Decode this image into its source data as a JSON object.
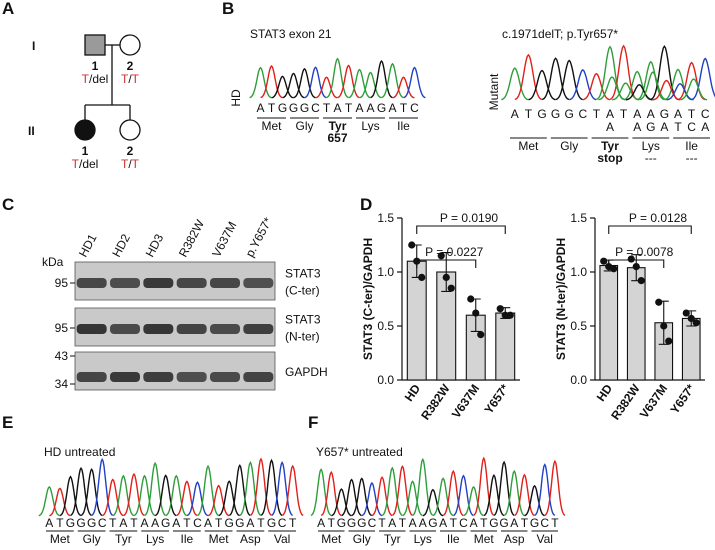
{
  "figure": {
    "A": {
      "label": "A",
      "generations": [
        "I",
        "II"
      ],
      "individuals": [
        {
          "number": "1",
          "genotype": [
            {
              "text": "T",
              "color": "#d0312d"
            },
            {
              "text": "/del",
              "color": "#111111"
            }
          ]
        },
        {
          "number": "2",
          "genotype": [
            {
              "text": "T",
              "color": "#d0312d"
            },
            {
              "text": "/",
              "color": "#111111"
            },
            {
              "text": "T",
              "color": "#d0312d"
            }
          ]
        },
        {
          "number": "1",
          "genotype": [
            {
              "text": "T",
              "color": "#d0312d"
            },
            {
              "text": "/del",
              "color": "#111111"
            }
          ]
        },
        {
          "number": "2",
          "genotype": [
            {
              "text": "T",
              "color": "#d0312d"
            },
            {
              "text": "/",
              "color": "#111111"
            },
            {
              "text": "T",
              "color": "#d0312d"
            }
          ]
        }
      ]
    },
    "B": {
      "label": "B",
      "hd": {
        "title": "STAT3 exon 21",
        "side_label": "HD",
        "bases": [
          "A",
          "T",
          "G",
          "G",
          "G",
          "C",
          "T",
          "A",
          "T",
          "A",
          "A",
          "G",
          "A",
          "T",
          "C"
        ],
        "amino_acids": [
          {
            "name": "Met"
          },
          {
            "name": "Gly"
          },
          {
            "name": "Tyr",
            "note": "657"
          },
          {
            "name": "Lys"
          },
          {
            "name": "Ile"
          }
        ]
      },
      "mutant": {
        "title": "c.1971delT; p.Tyr657*",
        "side_label": "Mutant",
        "bases": [
          "A",
          "T",
          "G",
          "G",
          "G",
          "C",
          "T",
          "A",
          "T",
          "A",
          "A",
          "G",
          "A",
          "T",
          "C"
        ],
        "second_bases": [
          "A",
          "A",
          "G",
          "A",
          "T",
          "C",
          "A"
        ],
        "amino_acids": [
          {
            "name": "Met"
          },
          {
            "name": "Gly"
          },
          {
            "name": "Tyr",
            "note": "stop"
          },
          {
            "name": "Lys",
            "note": "---"
          },
          {
            "name": "Ile",
            "note": "---"
          }
        ]
      }
    },
    "C": {
      "label": "C",
      "kda_label": "kDa",
      "lanes": [
        "HD1",
        "HD2",
        "HD3",
        "R382W",
        "V637M",
        "p.Y657*"
      ],
      "strips": [
        {
          "markers": [
            95
          ],
          "labels": [
            "STAT3",
            "(C-ter)"
          ]
        },
        {
          "markers": [
            95
          ],
          "labels": [
            "STAT3",
            "(N-ter)"
          ]
        },
        {
          "markers": [
            43,
            34
          ],
          "labels": [
            "GAPDH"
          ]
        }
      ]
    },
    "D": {
      "label": "D"
    },
    "E": {
      "label": "E",
      "title": "HD untreated",
      "bases": [
        "A",
        "T",
        "G",
        "G",
        "G",
        "C",
        "T",
        "A",
        "T",
        "A",
        "A",
        "G",
        "A",
        "T",
        "C",
        "A",
        "T",
        "G",
        "G",
        "A",
        "T",
        "G",
        "C",
        "T"
      ],
      "amino_acids": [
        "Met",
        "Gly",
        "Tyr",
        "Lys",
        "Ile",
        "Met",
        "Asp",
        "Val"
      ]
    },
    "F": {
      "label": "F",
      "title": "Y657* untreated",
      "bases": [
        "A",
        "T",
        "G",
        "G",
        "G",
        "C",
        "T",
        "A",
        "T",
        "A",
        "A",
        "G",
        "A",
        "T",
        "C",
        "A",
        "T",
        "G",
        "G",
        "A",
        "T",
        "G",
        "C",
        "T"
      ],
      "amino_acids": [
        "Met",
        "Gly",
        "Tyr",
        "Lys",
        "Ile",
        "Met",
        "Asp",
        "Val"
      ]
    }
  },
  "chart_data": [
    {
      "type": "bar",
      "y_label": "STAT3 (C-ter)/GAPDH",
      "categories": [
        "HD",
        "R382W",
        "V637M",
        "Y657*"
      ],
      "values": [
        1.1,
        1.0,
        0.6,
        0.62
      ],
      "errors": [
        0.15,
        0.18,
        0.15,
        0.05
      ],
      "points": [
        [
          1.25,
          1.1,
          0.95
        ],
        [
          1.15,
          0.95,
          0.85
        ],
        [
          0.75,
          0.62,
          0.42
        ],
        [
          0.66,
          0.6,
          0.6
        ]
      ],
      "color": "#d4d4d4",
      "ylim": [
        0,
        1.5
      ],
      "yticks": [
        {
          "value": 0,
          "label": "0.0"
        },
        0.5,
        {
          "value": 1,
          "label": "1.0"
        },
        1.5
      ],
      "annotations": [
        "P = 0.0227",
        "P = 0.0190"
      ]
    },
    {
      "type": "bar",
      "y_label": "STAT3 (N-ter)/GAPDH",
      "categories": [
        "HD",
        "R382W",
        "V637M",
        "Y657*"
      ],
      "values": [
        1.06,
        1.04,
        0.53,
        0.57
      ],
      "errors": [
        0.05,
        0.12,
        0.2,
        0.07
      ],
      "points": [
        [
          1.1,
          1.05,
          1.03
        ],
        [
          1.12,
          1.05,
          0.92
        ],
        [
          0.72,
          0.5,
          0.36
        ],
        [
          0.62,
          0.57,
          0.53
        ]
      ],
      "color": "#d4d4d4",
      "ylim": [
        0,
        1.5
      ],
      "yticks": [
        {
          "value": 0,
          "label": "0.0"
        },
        0.5,
        {
          "value": 1,
          "label": "1.0"
        },
        1.5
      ],
      "annotations": [
        "P = 0.0078",
        "P = 0.0128"
      ]
    }
  ]
}
